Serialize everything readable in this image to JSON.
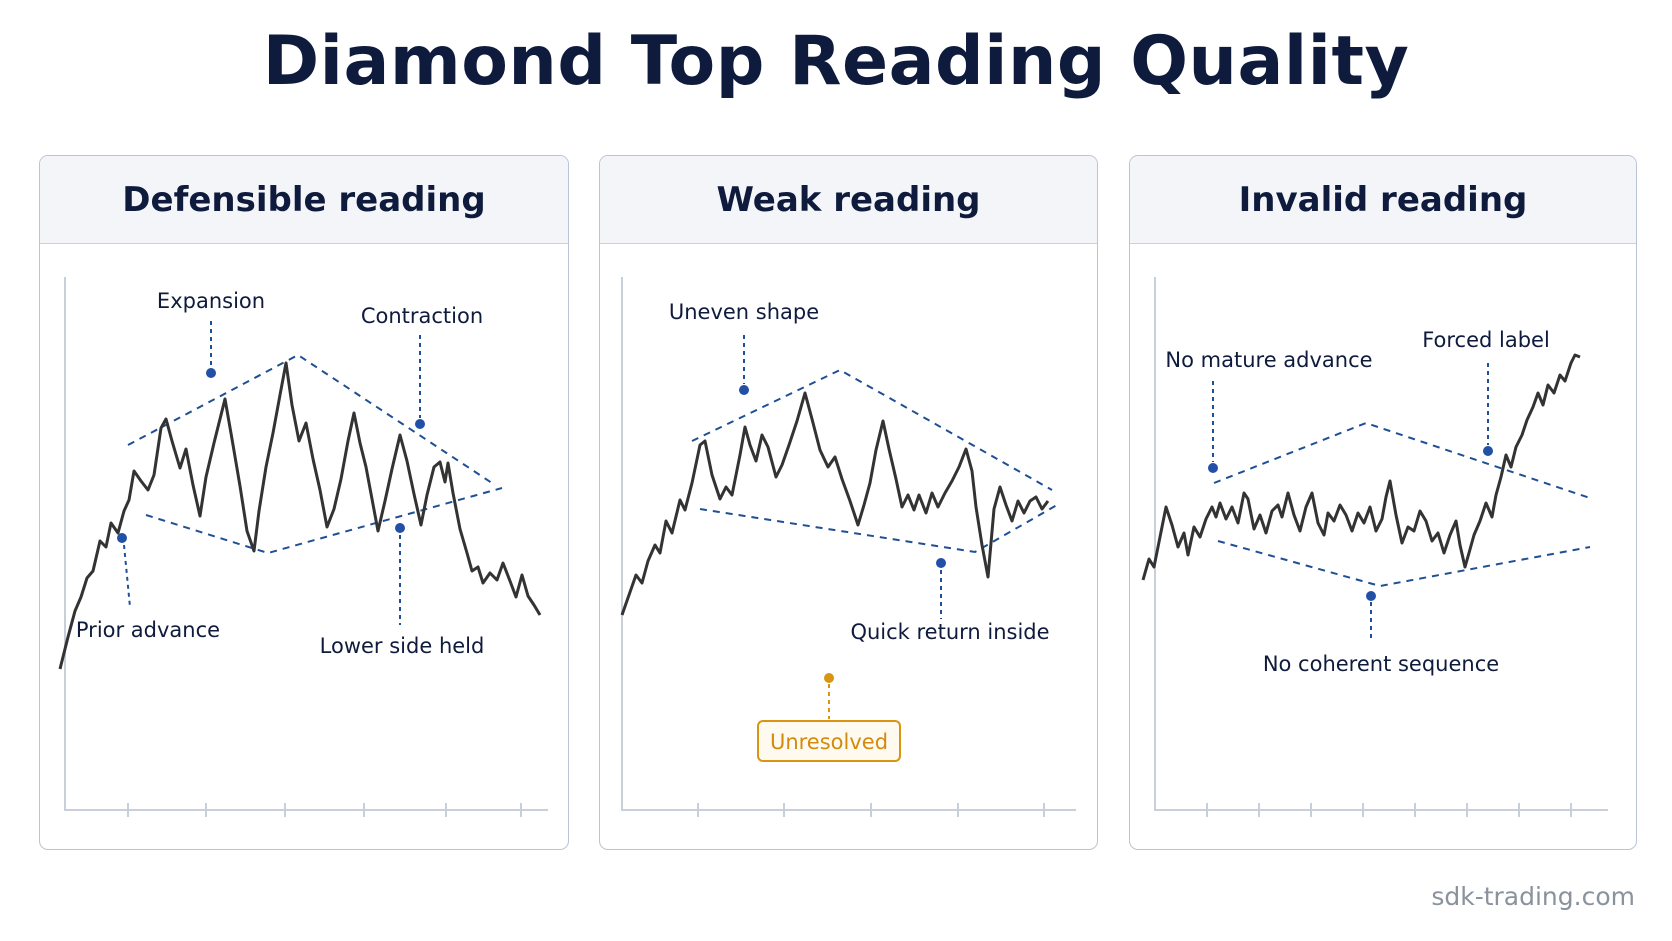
{
  "title": "Diamond Top Reading Quality",
  "footer": "sdk-trading.com",
  "colors": {
    "navy": "#0f1b3d",
    "line": "#333333",
    "boundary": "#1f4f94",
    "marker": "#2150a6",
    "warning": "#d99412",
    "axis": "#c7cfd9"
  },
  "panels": [
    {
      "header": "Defensible reading",
      "labels": {
        "expansion": "Expansion",
        "contraction": "Contraction",
        "prior_advance": "Prior advance",
        "lower_side_held": "Lower side held"
      }
    },
    {
      "header": "Weak reading",
      "labels": {
        "uneven_shape": "Uneven shape",
        "quick_return_inside": "Quick return inside",
        "unresolved": "Unresolved"
      }
    },
    {
      "header": "Invalid reading",
      "labels": {
        "no_mature_advance": "No mature advance",
        "forced_label": "Forced label",
        "no_coherent_sequence": "No coherent sequence"
      }
    }
  ]
}
